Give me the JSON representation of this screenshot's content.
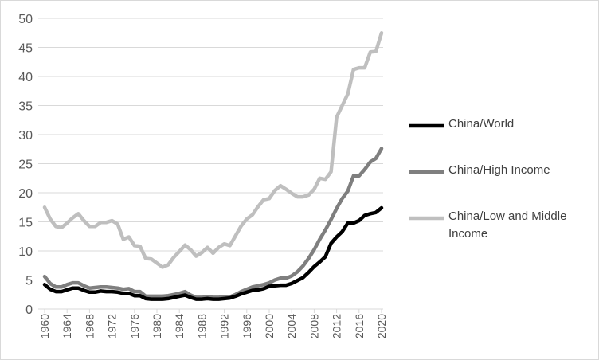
{
  "chart_data": {
    "type": "line",
    "title": "",
    "xlabel": "",
    "ylabel": "",
    "ylim": [
      0,
      50
    ],
    "yticks": [
      0,
      5,
      10,
      15,
      20,
      25,
      30,
      35,
      40,
      45,
      50
    ],
    "xlim": [
      1960,
      2020
    ],
    "xticks": [
      1960,
      1964,
      1968,
      1972,
      1976,
      1980,
      1984,
      1988,
      1992,
      1996,
      2000,
      2004,
      2008,
      2012,
      2016,
      2020
    ],
    "grid": "horizontal",
    "legend_position": "right",
    "x_start": 1960,
    "series": [
      {
        "name": "China/World",
        "color": "#000000",
        "values": [
          4.2,
          3.4,
          3.0,
          3.0,
          3.3,
          3.6,
          3.6,
          3.2,
          2.9,
          2.9,
          3.1,
          3.0,
          3.0,
          2.9,
          2.7,
          2.7,
          2.3,
          2.3,
          1.8,
          1.7,
          1.7,
          1.7,
          1.8,
          2.0,
          2.2,
          2.4,
          2.0,
          1.7,
          1.7,
          1.8,
          1.7,
          1.7,
          1.8,
          1.9,
          2.2,
          2.6,
          2.9,
          3.2,
          3.3,
          3.5,
          3.9,
          4.0,
          4.1,
          4.1,
          4.4,
          4.9,
          5.4,
          6.3,
          7.3,
          8.1,
          9.0,
          11.3,
          12.4,
          13.3,
          14.8,
          14.8,
          15.2,
          16.1,
          16.4,
          16.6,
          17.4
        ]
      },
      {
        "name": "China/High Income",
        "color": "#7f7f7f",
        "values": [
          5.6,
          4.4,
          3.8,
          3.8,
          4.2,
          4.5,
          4.5,
          4.0,
          3.6,
          3.7,
          3.8,
          3.8,
          3.7,
          3.6,
          3.4,
          3.5,
          3.0,
          3.0,
          2.2,
          2.2,
          2.2,
          2.2,
          2.3,
          2.5,
          2.7,
          3.0,
          2.4,
          2.0,
          2.0,
          2.1,
          2.0,
          2.0,
          2.1,
          2.1,
          2.5,
          3.0,
          3.4,
          3.8,
          4.0,
          4.2,
          4.5,
          5.0,
          5.3,
          5.3,
          5.7,
          6.4,
          7.4,
          8.7,
          10.2,
          12.0,
          13.6,
          15.4,
          17.3,
          19.0,
          20.3,
          22.9,
          22.9,
          24.0,
          25.3,
          25.9,
          27.6
        ]
      },
      {
        "name": "China/Low and Middle Income",
        "color": "#bfbfbf",
        "values": [
          17.5,
          15.5,
          14.2,
          14.0,
          14.8,
          15.7,
          16.4,
          15.2,
          14.2,
          14.2,
          14.9,
          14.9,
          15.2,
          14.6,
          12.0,
          12.4,
          10.9,
          10.8,
          8.7,
          8.6,
          7.9,
          7.2,
          7.6,
          8.9,
          9.9,
          11.0,
          10.2,
          9.1,
          9.7,
          10.6,
          9.6,
          10.6,
          11.2,
          10.9,
          12.6,
          14.3,
          15.5,
          16.2,
          17.6,
          18.8,
          19.0,
          20.4,
          21.2,
          20.6,
          19.9,
          19.3,
          19.3,
          19.6,
          20.6,
          22.5,
          22.3,
          23.6,
          33.0,
          35.0,
          37.0,
          41.2,
          41.5,
          41.5,
          44.2,
          44.3,
          47.5
        ]
      }
    ]
  },
  "legend": {
    "items": [
      "China/World",
      "China/High Income",
      "China/Low and Middle",
      "Income"
    ]
  }
}
